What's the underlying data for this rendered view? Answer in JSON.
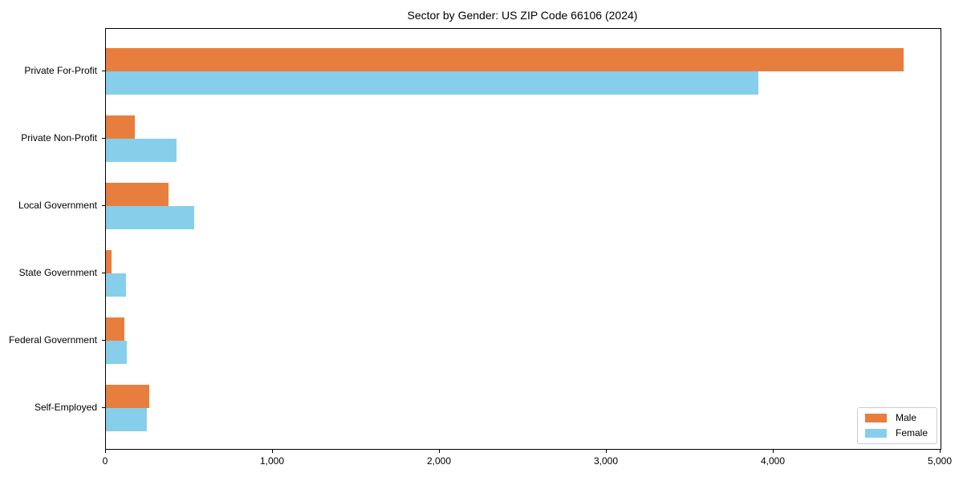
{
  "chart_data": {
    "type": "bar",
    "orientation": "horizontal",
    "title": "Sector by Gender: US ZIP Code 66106 (2024)",
    "categories": [
      "Private For-Profit",
      "Private Non-Profit",
      "Local Government",
      "State Government",
      "Federal Government",
      "Self-Employed"
    ],
    "series": [
      {
        "name": "Male",
        "color": "#E87E3D",
        "values": [
          4780,
          175,
          375,
          35,
          110,
          260
        ]
      },
      {
        "name": "Female",
        "color": "#87CEEB",
        "values": [
          3910,
          425,
          530,
          120,
          125,
          245
        ]
      }
    ],
    "xlim": [
      0,
      5000
    ],
    "xticks": [
      0,
      1000,
      2000,
      3000,
      4000,
      5000
    ],
    "xtick_labels": [
      "0",
      "1,000",
      "2,000",
      "3,000",
      "4,000",
      "5,000"
    ],
    "xlabel": "",
    "ylabel": "",
    "grid": false,
    "legend": {
      "position": "lower-right",
      "entries": [
        "Male",
        "Female"
      ]
    },
    "colors": {
      "axis": "#000000",
      "background": "#ffffff",
      "legend_border": "#cccccc"
    }
  }
}
